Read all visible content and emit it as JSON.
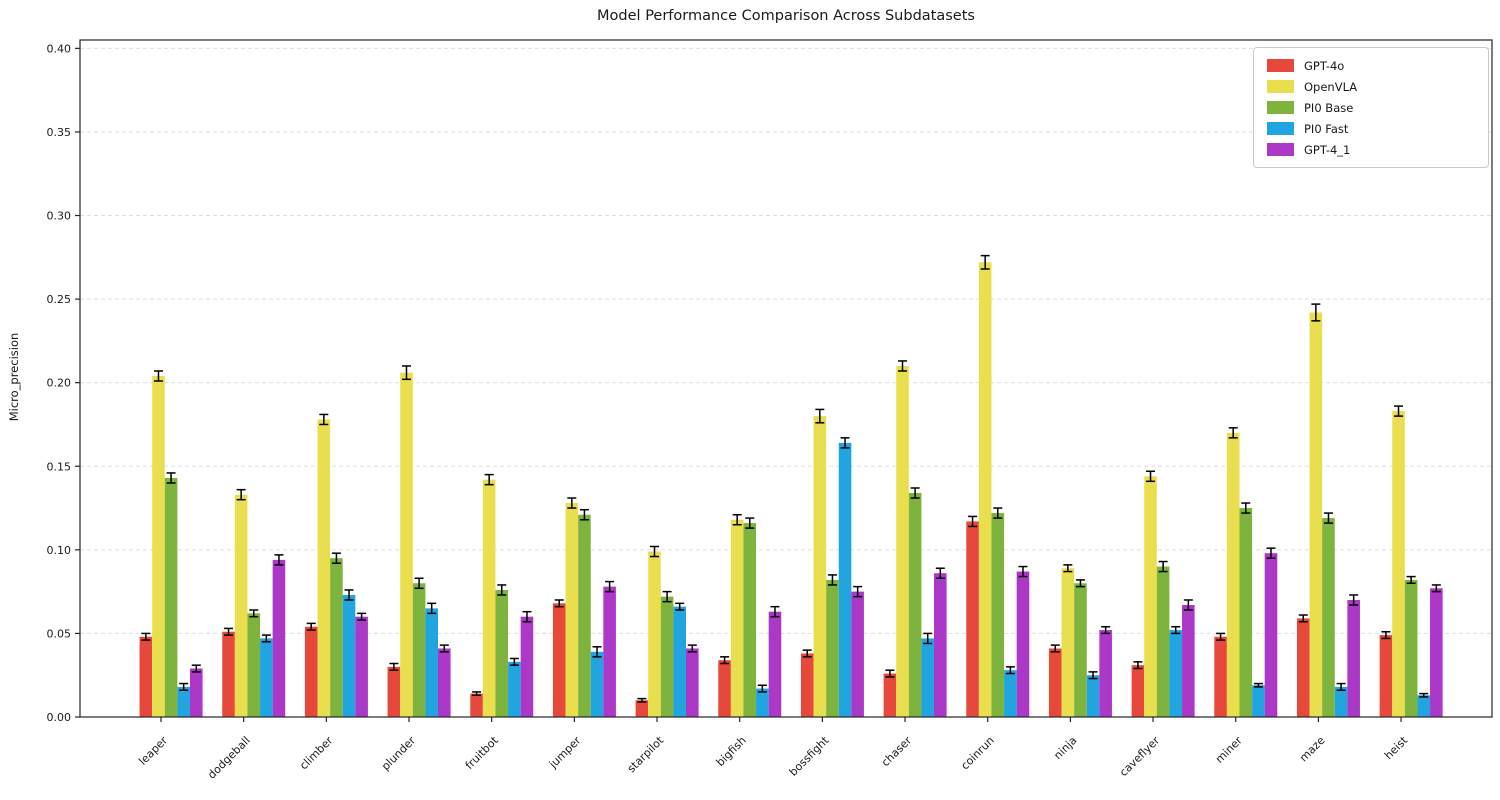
{
  "figure": {
    "background": "#ffffff"
  },
  "chart_data": {
    "type": "bar",
    "title": "Model Performance Comparison Across Subdatasets",
    "xlabel": "",
    "ylabel": "Micro_precision",
    "ylim": [
      0,
      0.405
    ],
    "yticks": [
      0.0,
      0.05,
      0.1,
      0.15,
      0.2,
      0.25,
      0.3,
      0.35,
      0.4
    ],
    "ytick_labels": [
      "0.00",
      "0.05",
      "0.10",
      "0.15",
      "0.20",
      "0.25",
      "0.30",
      "0.35",
      "0.40"
    ],
    "grid": "horizontal-dashed",
    "grid_color": "#dedede",
    "axis_color": "#262626",
    "error_bar_color": "#000000",
    "legend_position": "upper-right",
    "xtick_rotation_deg": 45,
    "categories": [
      "leaper",
      "dodgeball",
      "climber",
      "plunder",
      "fruitbot",
      "jumper",
      "starpilot",
      "bigfish",
      "bossfight",
      "chaser",
      "coinrun",
      "ninja",
      "caveflyer",
      "miner",
      "maze",
      "heist"
    ],
    "series": [
      {
        "name": "GPT-4o",
        "color": "#e6493b",
        "values": [
          0.048,
          0.051,
          0.054,
          0.03,
          0.014,
          0.068,
          0.01,
          0.034,
          0.038,
          0.026,
          0.117,
          0.041,
          0.031,
          0.048,
          0.059,
          0.049
        ],
        "errors": [
          0.002,
          0.002,
          0.002,
          0.002,
          0.001,
          0.002,
          0.001,
          0.002,
          0.002,
          0.002,
          0.003,
          0.002,
          0.002,
          0.002,
          0.002,
          0.002
        ]
      },
      {
        "name": "OpenVLA",
        "color": "#e9df4e",
        "values": [
          0.204,
          0.133,
          0.178,
          0.206,
          0.142,
          0.128,
          0.099,
          0.118,
          0.18,
          0.21,
          0.272,
          0.089,
          0.144,
          0.17,
          0.242,
          0.183
        ],
        "errors": [
          0.003,
          0.003,
          0.003,
          0.004,
          0.003,
          0.003,
          0.003,
          0.003,
          0.004,
          0.003,
          0.004,
          0.002,
          0.003,
          0.003,
          0.005,
          0.003
        ]
      },
      {
        "name": "PI0 Base",
        "color": "#7eb43e",
        "values": [
          0.143,
          0.062,
          0.095,
          0.08,
          0.076,
          0.121,
          0.072,
          0.116,
          0.082,
          0.134,
          0.122,
          0.08,
          0.09,
          0.125,
          0.119,
          0.082
        ],
        "errors": [
          0.003,
          0.002,
          0.003,
          0.003,
          0.003,
          0.003,
          0.003,
          0.003,
          0.003,
          0.003,
          0.003,
          0.002,
          0.003,
          0.003,
          0.003,
          0.002
        ]
      },
      {
        "name": "PI0 Fast",
        "color": "#21a5e1",
        "values": [
          0.018,
          0.047,
          0.073,
          0.065,
          0.033,
          0.039,
          0.066,
          0.017,
          0.164,
          0.047,
          0.028,
          0.025,
          0.052,
          0.019,
          0.018,
          0.013
        ],
        "errors": [
          0.002,
          0.002,
          0.003,
          0.003,
          0.002,
          0.003,
          0.002,
          0.002,
          0.003,
          0.003,
          0.002,
          0.002,
          0.002,
          0.001,
          0.002,
          0.001
        ]
      },
      {
        "name": "GPT-4_1",
        "color": "#ac38c8",
        "values": [
          0.029,
          0.094,
          0.06,
          0.041,
          0.06,
          0.078,
          0.041,
          0.063,
          0.075,
          0.086,
          0.087,
          0.052,
          0.067,
          0.098,
          0.07,
          0.077
        ],
        "errors": [
          0.002,
          0.003,
          0.002,
          0.002,
          0.003,
          0.003,
          0.002,
          0.003,
          0.003,
          0.003,
          0.003,
          0.002,
          0.003,
          0.003,
          0.003,
          0.002
        ]
      }
    ]
  }
}
